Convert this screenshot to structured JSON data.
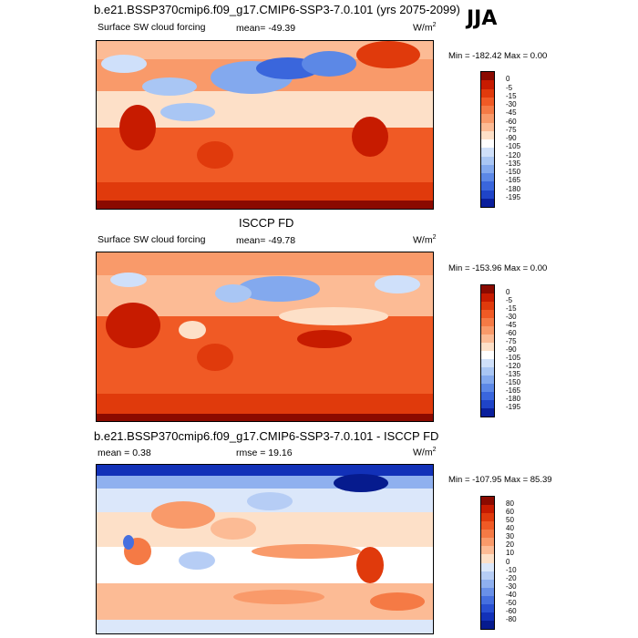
{
  "header": {
    "title": "b.e21.BSSP370cmip6.f09_g17.CMIP6-SSP3-7.0.101 (yrs 2075-2099)",
    "season": "JJA"
  },
  "panels": [
    {
      "name": "model",
      "left_label": "Surface SW cloud forcing",
      "stat": "mean= -49.39",
      "units": "W/m",
      "units_sup": "2",
      "minmax": "Min = -182.42 Max =   0.00"
    },
    {
      "name": "obs",
      "center_title": "ISCCP FD",
      "left_label": "Surface SW cloud forcing",
      "stat": "mean= -49.78",
      "units": "W/m",
      "units_sup": "2",
      "minmax": "Min = -153.96 Max =   0.00"
    },
    {
      "name": "diff",
      "center_title": "b.e21.BSSP370cmip6.f09_g17.CMIP6-SSP3-7.0.101 - ISCCP FD",
      "left_label": "mean =   0.38",
      "stat": "rmse =  19.16",
      "units": "W/m",
      "units_sup": "2",
      "minmax": "Min = -107.95 Max =  85.39"
    }
  ],
  "colorbars": {
    "abs": {
      "labels": [
        "0",
        "-5",
        "-15",
        "-30",
        "-45",
        "-60",
        "-75",
        "-90",
        "-105",
        "-120",
        "-135",
        "-150",
        "-165",
        "-180",
        "-195"
      ],
      "colors": [
        "#8b0a00",
        "#c71b00",
        "#e03a0c",
        "#f05a25",
        "#f57a45",
        "#f99a6a",
        "#fcbb95",
        "#fde0c8",
        "#ffffff",
        "#cfe0fa",
        "#a9c6f4",
        "#83a9ee",
        "#5c88e6",
        "#3a66dc",
        "#1f44c8",
        "#0a1f9c"
      ]
    },
    "diff": {
      "labels": [
        "80",
        "60",
        "50",
        "40",
        "30",
        "20",
        "10",
        "0",
        "-10",
        "-20",
        "-30",
        "-40",
        "-50",
        "-60",
        "-80"
      ],
      "colors": [
        "#8b0a00",
        "#c71b00",
        "#e03a0c",
        "#f05a25",
        "#f57a45",
        "#f99a6a",
        "#fcbb95",
        "#fde0c8",
        "#dbe7fa",
        "#b6cdf5",
        "#8fb0ef",
        "#6990e8",
        "#456fdf",
        "#284fd1",
        "#1231b8",
        "#061b8e"
      ]
    }
  },
  "chart_data": [
    {
      "type": "heatmap",
      "title": "Surface SW cloud forcing",
      "model": "b.e21.BSSP370cmip6.f09_g17.CMIP6-SSP3-7.0.101 (yrs 2075-2099)",
      "season": "JJA",
      "units": "W/m2",
      "mean": -49.39,
      "min": -182.42,
      "max": 0.0,
      "contour_levels": [
        0,
        -5,
        -15,
        -30,
        -45,
        -60,
        -75,
        -90,
        -105,
        -120,
        -135,
        -150,
        -165,
        -180,
        -195
      ]
    },
    {
      "type": "heatmap",
      "title": "ISCCP FD",
      "subtitle": "Surface SW cloud forcing",
      "units": "W/m2",
      "mean": -49.78,
      "min": -153.96,
      "max": 0.0,
      "contour_levels": [
        0,
        -5,
        -15,
        -30,
        -45,
        -60,
        -75,
        -90,
        -105,
        -120,
        -135,
        -150,
        -165,
        -180,
        -195
      ]
    },
    {
      "type": "heatmap",
      "title": "b.e21.BSSP370cmip6.f09_g17.CMIP6-SSP3-7.0.101 - ISCCP FD",
      "units": "W/m2",
      "mean": 0.38,
      "rmse": 19.16,
      "min": -107.95,
      "max": 85.39,
      "contour_levels": [
        80,
        60,
        50,
        40,
        30,
        20,
        10,
        0,
        -10,
        -20,
        -30,
        -40,
        -50,
        -60,
        -80
      ]
    }
  ]
}
